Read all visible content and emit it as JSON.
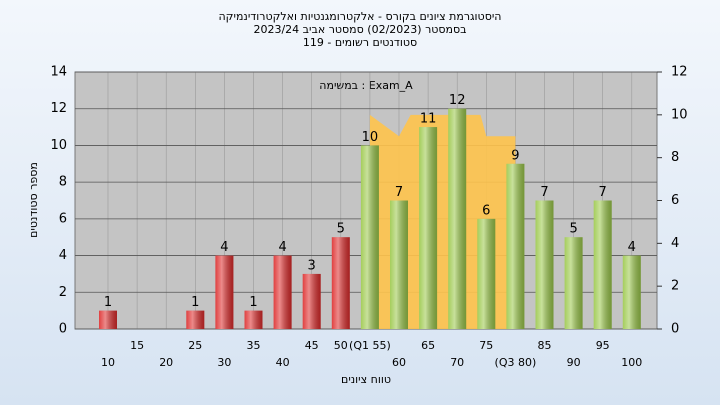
{
  "chart_data": {
    "type": "bar",
    "title": "היסטוגרמת ציונים בקורס - אלקטרומגנטיות ואלקטרודינמיקה",
    "subtitle": [
      "בסמסטר  (02/2023)  סמסטר אביב 2023/24",
      "סטודנטים רשומים - 119"
    ],
    "annotation": "במשימה : Exam_A",
    "x_label": "טווח ציונים",
    "y_label": "מספר סטודנטים",
    "categories": [
      "10",
      "15",
      "20",
      "25",
      "30",
      "35",
      "40",
      "45",
      "50",
      "(Q1 55)",
      "60",
      "65",
      "70",
      "75",
      "(Q3 80)",
      "85",
      "90",
      "95",
      "100"
    ],
    "values": [
      1,
      0,
      0,
      1,
      4,
      1,
      4,
      3,
      5,
      10,
      7,
      11,
      12,
      6,
      9,
      7,
      5,
      7,
      4
    ],
    "colors": [
      "#dd2b2b",
      "#dd2b2b",
      "#dd2b2b",
      "#dd2b2b",
      "#dd2b2b",
      "#dd2b2b",
      "#dd2b2b",
      "#dd2b2b",
      "#dd2b2b",
      "#9bc84a",
      "#9bc84a",
      "#9bc84a",
      "#9bc84a",
      "#9bc84a",
      "#9bc84a",
      "#9bc84a",
      "#9bc84a",
      "#9bc84a",
      "#9bc84a"
    ],
    "area": {
      "color": "#ffc44d",
      "axis": "y2",
      "x": [
        55,
        60,
        62,
        74,
        75,
        80
      ],
      "values": [
        10,
        9,
        10,
        10,
        9,
        9
      ]
    },
    "ylim": [
      0,
      14
    ],
    "yticks": [
      0,
      2,
      4,
      6,
      8,
      10,
      12,
      14
    ],
    "y2lim": [
      0,
      12
    ],
    "y2ticks": [
      0,
      2,
      4,
      6,
      8,
      10,
      12
    ],
    "grid": true
  }
}
